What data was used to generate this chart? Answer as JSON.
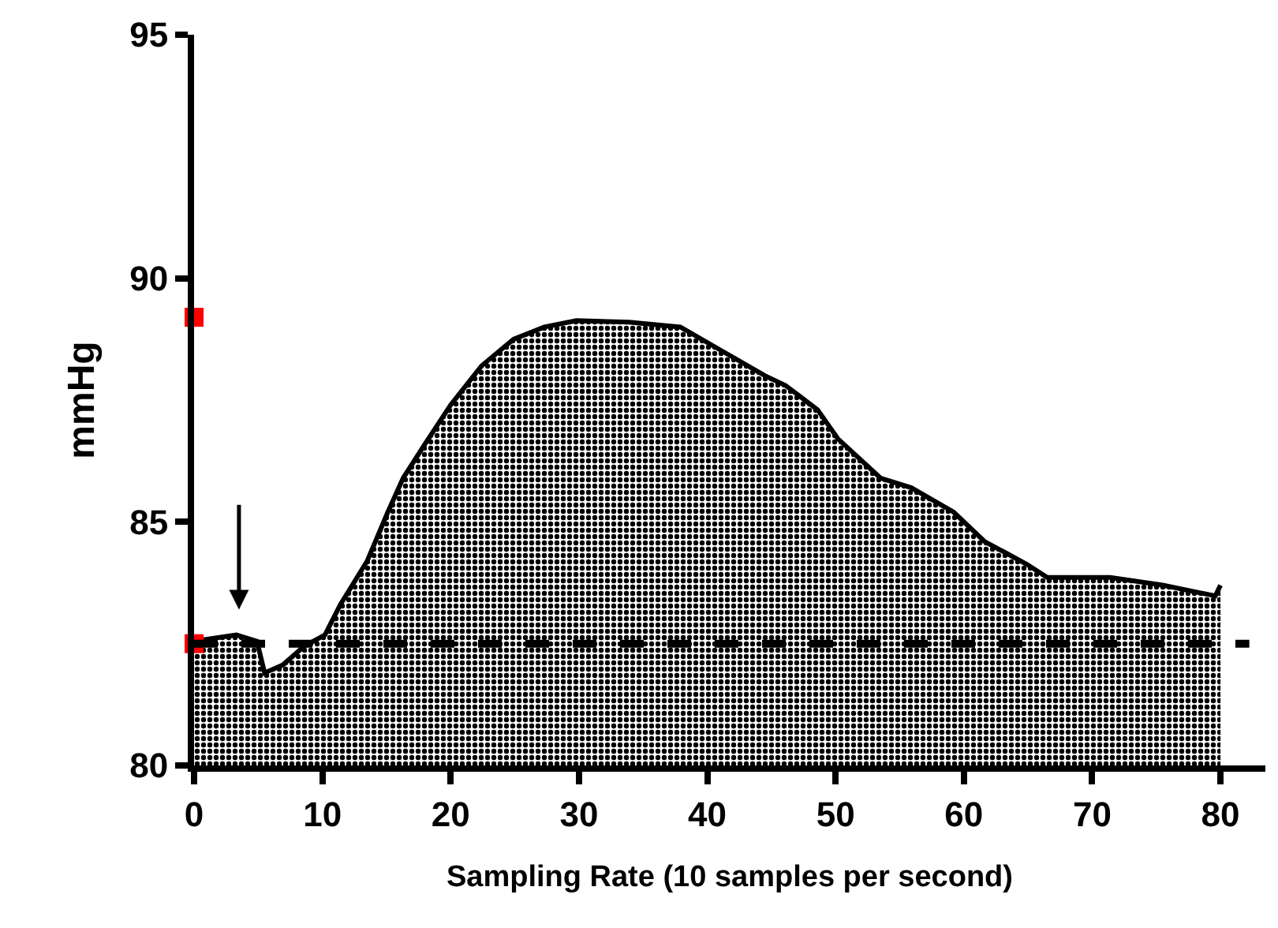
{
  "chart_data": {
    "type": "area",
    "xlabel": "Sampling Rate (10 samples per second)",
    "ylabel": "mmHg",
    "series": [
      {
        "type": "scatter",
        "marker": "square",
        "color": "#ff0000",
        "x": [
          0,
          0
        ],
        "values": [
          82.5,
          89.2
        ]
      },
      {
        "color": "#000000",
        "x": [
          0,
          3.3,
          4.9,
          5.5,
          6.9,
          8.6,
          10.2,
          11.4,
          13.5,
          15.1,
          16.3,
          18.0,
          20.0,
          22.4,
          24.9,
          27.3,
          29.8,
          33.9,
          37.9,
          41.2,
          44.5,
          46.1,
          48.6,
          50.2,
          53.5,
          55.9,
          59.2,
          61.6,
          64.9,
          66.5,
          71.4,
          75.5,
          79.6,
          80.0
        ],
        "values": [
          82.55,
          82.68,
          82.55,
          81.9,
          82.06,
          82.45,
          82.68,
          83.3,
          84.2,
          85.2,
          85.9,
          86.6,
          87.4,
          88.2,
          88.75,
          89.0,
          89.13,
          89.1,
          89.0,
          88.5,
          88.0,
          87.8,
          87.3,
          86.7,
          85.9,
          85.7,
          85.2,
          84.6,
          84.13,
          83.86,
          83.86,
          83.7,
          83.48,
          83.7
        ]
      }
    ],
    "xlim": [
      0,
      83.5
    ],
    "xticks": [
      0,
      10,
      20,
      30,
      40,
      50,
      60,
      70,
      80
    ],
    "ylim": [
      80,
      95
    ],
    "yticks": [
      80,
      85,
      90,
      95
    ],
    "grid": false,
    "marker": "none",
    "line_style": "solid",
    "ref_lines": [
      {
        "axis": "y",
        "value": 82.5,
        "color": "#000000",
        "line_style": "dashed"
      }
    ]
  }
}
